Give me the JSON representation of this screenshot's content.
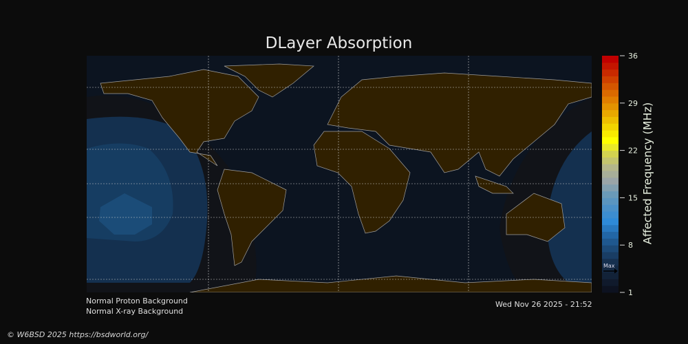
{
  "title": "DLayer Absorption",
  "chart_data": {
    "type": "heatmap",
    "title": "DLayer Absorption",
    "colorbar": {
      "label": "Affected Frequency (MHz)",
      "range": [
        1,
        36
      ],
      "ticks": [
        "36",
        "29",
        "22",
        "15",
        "8",
        "1"
      ],
      "tick_values": [
        36,
        29,
        22,
        15,
        8,
        1
      ],
      "max_marker_label": "Max",
      "max_marker_value": 4,
      "colors": [
        "#0d1220",
        "#122238",
        "#16304f",
        "#1c4a78",
        "#2266a6",
        "#2e8ad8",
        "#4a90c8",
        "#6a9ab8",
        "#9aa5a8",
        "#b4b68a",
        "#d2d250",
        "#ffff00",
        "#f2d400",
        "#e8a800",
        "#e07e00",
        "#d45600",
        "#c82a00",
        "#c00000"
      ]
    },
    "grid": true,
    "map": "world",
    "absorption_region": "Pacific Ocean, max about 4 MHz"
  },
  "notes": {
    "proton": "Normal Proton Background",
    "xray": "Normal X-ray Background",
    "timestamp": "Wed Nov 26 2025 - 21:52"
  },
  "footer": "© W6BSD 2025 https://bsdworld.org/",
  "colors": {
    "land": "#302000",
    "ocean": "#0c1420",
    "night": "#111318",
    "coast": "#a0a0a0"
  }
}
